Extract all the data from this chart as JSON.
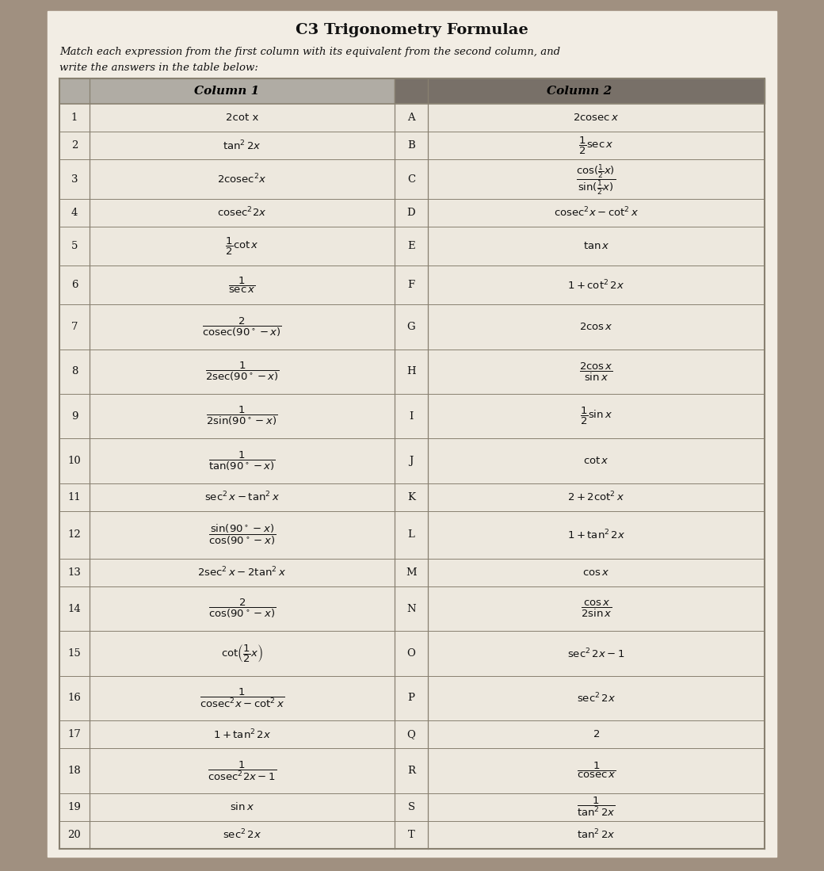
{
  "title": "C3 Trigonometry Formulae",
  "subtitle1": "Match each expression from the first column with its equivalent from the second column, and",
  "subtitle2": "write the answers in the table below:",
  "header_col1": "Column 1",
  "header_col2": "Column 2",
  "bg_color": "#a09080",
  "paper_color": "#f2ede4",
  "col1_header_bg": "#b0aca4",
  "col2_header_bg": "#787068",
  "row_bg": "#ede8de",
  "border_color": "#888070",
  "text_color": "#111111",
  "column1_rows": [
    {
      "num": "1",
      "expr": "2cot x",
      "is_frac": false
    },
    {
      "num": "2",
      "expr": "$\\tan^2 2x$",
      "is_frac": false
    },
    {
      "num": "3",
      "expr": "$2\\mathrm{cosec}^2 x$",
      "is_frac": false
    },
    {
      "num": "4",
      "expr": "$\\mathrm{cosec}^2 2x$",
      "is_frac": false
    },
    {
      "num": "5",
      "expr": "$\\dfrac{1}{2}\\cot x$",
      "is_frac": true
    },
    {
      "num": "6",
      "expr": "$\\dfrac{1}{\\sec x}$",
      "is_frac": true
    },
    {
      "num": "7",
      "expr": "$\\dfrac{2}{\\mathrm{cosec}(90^\\circ - x)}$",
      "is_frac": true
    },
    {
      "num": "8",
      "expr": "$\\dfrac{1}{2\\sec(90^\\circ - x)}$",
      "is_frac": true
    },
    {
      "num": "9",
      "expr": "$\\dfrac{1}{2\\sin(90^\\circ - x)}$",
      "is_frac": true
    },
    {
      "num": "10",
      "expr": "$\\dfrac{1}{\\tan(90^\\circ - x)}$",
      "is_frac": true
    },
    {
      "num": "11",
      "expr": "$\\sec^2 x - \\tan^2 x$",
      "is_frac": false
    },
    {
      "num": "12",
      "expr": "$\\dfrac{\\sin(90^\\circ - x)}{\\cos(90^\\circ - x)}$",
      "is_frac": true
    },
    {
      "num": "13",
      "expr": "$2\\sec^2 x - 2\\tan^2 x$",
      "is_frac": false
    },
    {
      "num": "14",
      "expr": "$\\dfrac{2}{\\cos(90^\\circ - x)}$",
      "is_frac": true
    },
    {
      "num": "15",
      "expr": "$\\cot\\!\\left(\\dfrac{1}{2}x\\right)$",
      "is_frac": true
    },
    {
      "num": "16",
      "expr": "$\\dfrac{1}{\\mathrm{cosec}^2 x - \\cot^2 x}$",
      "is_frac": true
    },
    {
      "num": "17",
      "expr": "$1 + \\tan^2 2x$",
      "is_frac": false
    },
    {
      "num": "18",
      "expr": "$\\dfrac{1}{\\mathrm{cosec}^2 2x - 1}$",
      "is_frac": true
    },
    {
      "num": "19",
      "expr": "$\\sin x$",
      "is_frac": false
    },
    {
      "num": "20",
      "expr": "$\\sec^2 2x$",
      "is_frac": false
    }
  ],
  "column2_rows": [
    {
      "letter": "A",
      "expr": "$2\\mathrm{cosec}\\, x$",
      "is_frac": false
    },
    {
      "letter": "B",
      "expr": "$\\dfrac{1}{2}\\sec x$",
      "is_frac": true
    },
    {
      "letter": "C",
      "expr": "$\\dfrac{\\cos(\\frac{1}{2}x)}{\\sin(\\frac{1}{2}x)}$",
      "is_frac": true
    },
    {
      "letter": "D",
      "expr": "$\\mathrm{cosec}^2 x - \\cot^2 x$",
      "is_frac": false
    },
    {
      "letter": "E",
      "expr": "$\\tan x$",
      "is_frac": false
    },
    {
      "letter": "F",
      "expr": "$1 + \\cot^2 2x$",
      "is_frac": false
    },
    {
      "letter": "G",
      "expr": "$2\\cos x$",
      "is_frac": false
    },
    {
      "letter": "H",
      "expr": "$\\dfrac{2\\cos x}{\\sin x}$",
      "is_frac": true
    },
    {
      "letter": "I",
      "expr": "$\\dfrac{1}{2}\\sin x$",
      "is_frac": true
    },
    {
      "letter": "J",
      "expr": "$\\cot x$",
      "is_frac": false
    },
    {
      "letter": "K",
      "expr": "$2 + 2\\cot^2 x$",
      "is_frac": false
    },
    {
      "letter": "L",
      "expr": "$1 + \\tan^2 2x$",
      "is_frac": false
    },
    {
      "letter": "M",
      "expr": "$\\cos x$",
      "is_frac": false
    },
    {
      "letter": "N",
      "expr": "$\\dfrac{\\cos x}{2\\sin x}$",
      "is_frac": true
    },
    {
      "letter": "O",
      "expr": "$\\sec^2 2x - 1$",
      "is_frac": false
    },
    {
      "letter": "P",
      "expr": "$\\sec^2 2x$",
      "is_frac": false
    },
    {
      "letter": "Q",
      "expr": "$2$",
      "is_frac": false
    },
    {
      "letter": "R",
      "expr": "$\\dfrac{1}{\\mathrm{cosec}\\, x}$",
      "is_frac": true
    },
    {
      "letter": "S",
      "expr": "$\\dfrac{1}{\\tan^2 2x}$",
      "is_frac": true
    },
    {
      "letter": "T",
      "expr": "$\\tan^2 2x$",
      "is_frac": false
    }
  ],
  "row_heights": [
    1,
    1,
    1.4,
    1,
    1.4,
    1.4,
    1.6,
    1.6,
    1.6,
    1.6,
    1,
    1.7,
    1,
    1.6,
    1.6,
    1.6,
    1,
    1.6,
    1,
    1
  ]
}
